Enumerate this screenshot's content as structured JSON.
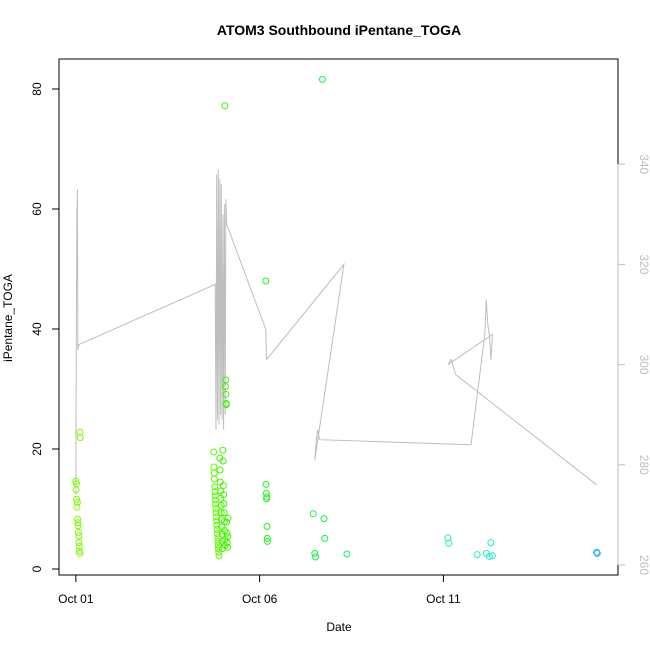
{
  "chart_data": {
    "type": "scatter",
    "title": "ATOM3 Southbound iPentane_TOGA",
    "xlabel": "Date",
    "ylabel": "iPentane_TOGA",
    "xlim": [
      "2017-09-30T13:00",
      "2017-10-15T18:00"
    ],
    "ylim": [
      -1,
      85
    ],
    "x_ticks": [
      {
        "date": "2017-10-01",
        "label": "Oct 01"
      },
      {
        "date": "2017-10-06",
        "label": "Oct 06"
      },
      {
        "date": "2017-10-11",
        "label": "Oct 11"
      }
    ],
    "y_ticks": [
      0,
      20,
      40,
      60,
      80
    ],
    "y2lim": [
      258,
      361
    ],
    "y2_ticks": [
      260,
      280,
      300,
      320,
      340
    ],
    "grid": false,
    "points": [
      [
        "2017-10-01T00:00",
        14.6,
        "#7cfc00"
      ],
      [
        "2017-10-01T00:10",
        13.2,
        "#7cfc00"
      ],
      [
        "2017-10-01T00:20",
        14.2,
        "#7cfc00"
      ],
      [
        "2017-10-01T00:30",
        11.6,
        "#7cfc00"
      ],
      [
        "2017-10-01T00:40",
        10.3,
        "#7cfc00"
      ],
      [
        "2017-10-01T01:00",
        11.1,
        "#7cfc00"
      ],
      [
        "2017-10-01T01:10",
        8.3,
        "#7cfc00"
      ],
      [
        "2017-10-01T01:20",
        7.7,
        "#7cfc00"
      ],
      [
        "2017-10-01T01:30",
        7.2,
        "#7cfc00"
      ],
      [
        "2017-10-01T01:40",
        6.1,
        "#7cfc00"
      ],
      [
        "2017-10-01T01:50",
        5.5,
        "#7cfc00"
      ],
      [
        "2017-10-01T02:00",
        4.4,
        "#7cfc00"
      ],
      [
        "2017-10-01T02:10",
        3.8,
        "#7cfc00"
      ],
      [
        "2017-10-01T02:20",
        3.0,
        "#7cfc00"
      ],
      [
        "2017-10-01T02:30",
        2.6,
        "#7cfc00"
      ],
      [
        "2017-10-01T02:40",
        22.8,
        "#7cfc00"
      ],
      [
        "2017-10-01T02:50",
        21.9,
        "#7cfc00"
      ],
      [
        "2017-10-04T18:00",
        19.5,
        "#5cfa00"
      ],
      [
        "2017-10-04T18:10",
        17.0,
        "#5cfa00"
      ],
      [
        "2017-10-04T18:20",
        16.0,
        "#5cfa00"
      ],
      [
        "2017-10-04T18:30",
        15.0,
        "#5cfa00"
      ],
      [
        "2017-10-04T18:40",
        13.7,
        "#5cfa00"
      ],
      [
        "2017-10-04T18:50",
        12.9,
        "#5cfa00"
      ],
      [
        "2017-10-04T19:00",
        12.2,
        "#5cfa00"
      ],
      [
        "2017-10-04T19:10",
        11.5,
        "#5cfa00"
      ],
      [
        "2017-10-04T19:20",
        10.8,
        "#5cfa00"
      ],
      [
        "2017-10-04T19:30",
        10.1,
        "#5cfa00"
      ],
      [
        "2017-10-04T19:40",
        9.4,
        "#5cfa00"
      ],
      [
        "2017-10-04T19:50",
        8.7,
        "#5cfa00"
      ],
      [
        "2017-10-04T20:00",
        8.0,
        "#5cfa00"
      ],
      [
        "2017-10-04T20:10",
        7.3,
        "#5cfa00"
      ],
      [
        "2017-10-04T20:20",
        6.6,
        "#5cfa00"
      ],
      [
        "2017-10-04T20:30",
        5.9,
        "#5cfa00"
      ],
      [
        "2017-10-04T20:40",
        5.2,
        "#5cfa00"
      ],
      [
        "2017-10-04T20:50",
        4.6,
        "#5cfa00"
      ],
      [
        "2017-10-04T21:00",
        4.0,
        "#5cfa00"
      ],
      [
        "2017-10-04T21:10",
        3.4,
        "#5cfa00"
      ],
      [
        "2017-10-04T21:20",
        2.8,
        "#5cfa00"
      ],
      [
        "2017-10-04T21:30",
        2.2,
        "#5cfa00"
      ],
      [
        "2017-10-04T22:00",
        18.5,
        "#48f800"
      ],
      [
        "2017-10-04T22:10",
        16.5,
        "#48f800"
      ],
      [
        "2017-10-04T22:20",
        14.5,
        "#48f800"
      ],
      [
        "2017-10-04T22:30",
        13.0,
        "#48f800"
      ],
      [
        "2017-10-04T22:40",
        11.8,
        "#48f800"
      ],
      [
        "2017-10-04T22:50",
        10.6,
        "#48f800"
      ],
      [
        "2017-10-04T23:00",
        9.4,
        "#48f800"
      ],
      [
        "2017-10-04T23:10",
        8.2,
        "#48f800"
      ],
      [
        "2017-10-04T23:20",
        7.0,
        "#48f800"
      ],
      [
        "2017-10-04T23:30",
        5.8,
        "#48f800"
      ],
      [
        "2017-10-04T23:40",
        4.6,
        "#48f800"
      ],
      [
        "2017-10-04T23:50",
        3.4,
        "#48f800"
      ],
      [
        "2017-10-05T00:00",
        19.8,
        "#40f700"
      ],
      [
        "2017-10-05T00:10",
        18.0,
        "#40f700"
      ],
      [
        "2017-10-05T00:20",
        13.9,
        "#40f700"
      ],
      [
        "2017-10-05T00:30",
        12.4,
        "#40f700"
      ],
      [
        "2017-10-05T00:40",
        10.9,
        "#40f700"
      ],
      [
        "2017-10-05T00:50",
        9.4,
        "#40f700"
      ],
      [
        "2017-10-05T01:00",
        7.9,
        "#40f700"
      ],
      [
        "2017-10-05T01:10",
        6.4,
        "#40f700"
      ],
      [
        "2017-10-05T01:20",
        4.9,
        "#40f700"
      ],
      [
        "2017-10-05T01:30",
        3.9,
        "#40f700"
      ],
      [
        "2017-10-05T01:40",
        30.4,
        "#40f700"
      ],
      [
        "2017-10-05T01:50",
        31.5,
        "#40f700"
      ],
      [
        "2017-10-05T02:00",
        29.1,
        "#40f700"
      ],
      [
        "2017-10-05T02:10",
        27.6,
        "#40f700"
      ],
      [
        "2017-10-05T02:20",
        27.4,
        "#40f700"
      ],
      [
        "2017-10-05T01:20",
        77.2,
        "#40f700"
      ],
      [
        "2017-10-05T02:30",
        7.8,
        "#40f700"
      ],
      [
        "2017-10-05T02:40",
        6.0,
        "#40f700"
      ],
      [
        "2017-10-05T02:50",
        4.4,
        "#40f700"
      ],
      [
        "2017-10-05T03:00",
        3.6,
        "#40f700"
      ],
      [
        "2017-10-05T03:10",
        5.4,
        "#40f700"
      ],
      [
        "2017-10-05T03:20",
        8.5,
        "#40f700"
      ],
      [
        "2017-10-06T04:00",
        48.0,
        "#22f51a"
      ],
      [
        "2017-10-06T04:10",
        14.1,
        "#22f51a"
      ],
      [
        "2017-10-06T04:20",
        12.6,
        "#22f51a"
      ],
      [
        "2017-10-06T04:30",
        11.7,
        "#22f51a"
      ],
      [
        "2017-10-06T04:40",
        12.0,
        "#22f51a"
      ],
      [
        "2017-10-06T04:50",
        7.1,
        "#22f51a"
      ],
      [
        "2017-10-06T05:00",
        5.1,
        "#22f51a"
      ],
      [
        "2017-10-06T05:10",
        4.6,
        "#22f51a"
      ],
      [
        "2017-10-07T11:00",
        9.2,
        "#10f34a"
      ],
      [
        "2017-10-07T12:00",
        2.6,
        "#10f34a"
      ],
      [
        "2017-10-07T12:30",
        2.0,
        "#10f34a"
      ],
      [
        "2017-10-07T17:00",
        81.6,
        "#10f34a"
      ],
      [
        "2017-10-07T18:00",
        8.4,
        "#10f34a"
      ],
      [
        "2017-10-07T18:30",
        5.1,
        "#10f34a"
      ],
      [
        "2017-10-08T09:00",
        2.5,
        "#10f06a"
      ],
      [
        "2017-10-11T03:00",
        5.2,
        "#20f0a8"
      ],
      [
        "2017-10-11T03:30",
        4.3,
        "#20f0a8"
      ],
      [
        "2017-10-11T22:00",
        2.4,
        "#22eecf"
      ],
      [
        "2017-10-12T04:00",
        2.6,
        "#22eecf"
      ],
      [
        "2017-10-12T06:00",
        2.1,
        "#22eecf"
      ],
      [
        "2017-10-12T07:00",
        4.4,
        "#22eecf"
      ],
      [
        "2017-10-12T08:00",
        2.2,
        "#22eecf"
      ],
      [
        "2017-10-15T04:00",
        2.8,
        "#1fb2f5"
      ],
      [
        "2017-10-15T04:30",
        2.6,
        "#1fb2f5"
      ]
    ],
    "secondary_line": {
      "color": "#bebebe",
      "points": [
        [
          "2017-10-01T00:00",
          274
        ],
        [
          "2017-10-01T00:20",
          310
        ],
        [
          "2017-10-01T00:40",
          330
        ],
        [
          "2017-10-01T01:00",
          335
        ],
        [
          "2017-10-01T01:20",
          303
        ],
        [
          "2017-10-01T02:00",
          304
        ],
        [
          "2017-10-04T19:00",
          316
        ],
        [
          "2017-10-04T19:30",
          287
        ],
        [
          "2017-10-04T20:00",
          338
        ],
        [
          "2017-10-04T20:30",
          289
        ],
        [
          "2017-10-04T21:00",
          339
        ],
        [
          "2017-10-04T21:30",
          288
        ],
        [
          "2017-10-04T22:00",
          337
        ],
        [
          "2017-10-04T22:30",
          290
        ],
        [
          "2017-10-04T23:00",
          336
        ],
        [
          "2017-10-04T23:30",
          289
        ],
        [
          "2017-10-05T00:00",
          330
        ],
        [
          "2017-10-05T00:30",
          287
        ],
        [
          "2017-10-05T01:00",
          332
        ],
        [
          "2017-10-05T01:30",
          290
        ],
        [
          "2017-10-05T02:00",
          333
        ],
        [
          "2017-10-05T02:30",
          328
        ],
        [
          "2017-10-06T04:00",
          307
        ],
        [
          "2017-10-06T04:30",
          301
        ],
        [
          "2017-10-08T07:00",
          320
        ],
        [
          "2017-10-07T12:00",
          281
        ],
        [
          "2017-10-07T13:00",
          285
        ],
        [
          "2017-10-07T14:00",
          287
        ],
        [
          "2017-10-07T15:00",
          285
        ],
        [
          "2017-10-11T18:00",
          284
        ],
        [
          "2017-10-12T03:00",
          306
        ],
        [
          "2017-10-12T04:00",
          313
        ],
        [
          "2017-10-12T05:00",
          308
        ],
        [
          "2017-10-12T06:00",
          306
        ],
        [
          "2017-10-12T07:00",
          301
        ],
        [
          "2017-10-12T08:00",
          306
        ],
        [
          "2017-10-11T03:00",
          300
        ],
        [
          "2017-10-11T05:00",
          301
        ],
        [
          "2017-10-11T08:00",
          298
        ],
        [
          "2017-10-15T04:00",
          276
        ]
      ]
    }
  }
}
